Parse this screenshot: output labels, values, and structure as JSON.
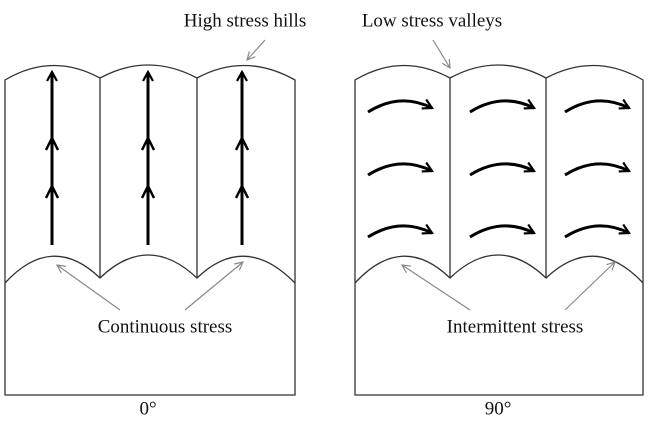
{
  "labels": {
    "top_left": "High stress hills",
    "top_right": "Low stress valleys",
    "bottom_left": "Continuous stress",
    "bottom_right": "Intermittent stress"
  },
  "panels": [
    {
      "caption": "0°"
    },
    {
      "caption": "90°"
    }
  ]
}
